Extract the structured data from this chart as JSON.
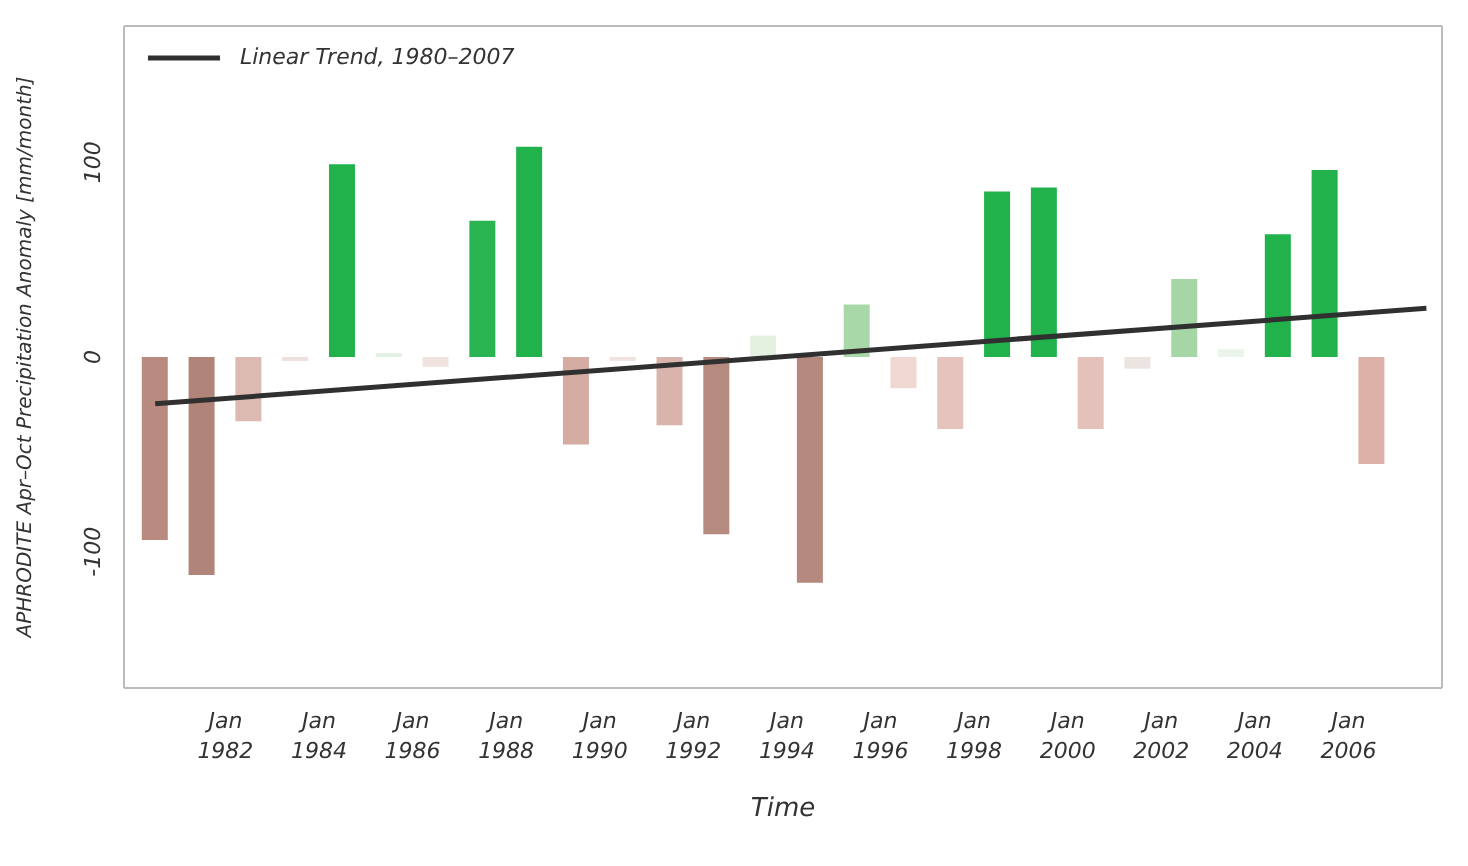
{
  "chart_data": {
    "type": "bar",
    "xlabel": "Time",
    "ylabel": "APHRODITE Apr–Oct Precipitation Anomaly [mm/month]",
    "x": [
      "1980-07",
      "1981-07",
      "1982-07",
      "1983-07",
      "1984-07",
      "1985-07",
      "1986-07",
      "1987-07",
      "1988-07",
      "1989-07",
      "1990-07",
      "1991-07",
      "1992-07",
      "1993-07",
      "1994-07",
      "1995-07",
      "1996-07",
      "1997-07",
      "1998-07",
      "1999-07",
      "2000-07",
      "2001-07",
      "2002-07",
      "2003-07",
      "2004-07",
      "2005-07",
      "2006-07"
    ],
    "series": [
      {
        "values": [
          -94,
          -112,
          -33,
          -2,
          99,
          2,
          -5,
          70,
          108,
          -45,
          -2,
          -35,
          -91,
          11,
          -116,
          27,
          -16,
          -37,
          85,
          87,
          -37,
          -6,
          40,
          4,
          63,
          96,
          -55
        ],
        "colors": [
          "#b98b80",
          "#b08478",
          "#dcbab2",
          "#eee0dc",
          "#22b24c",
          "#e2f2e2",
          "#f0e2de",
          "#2ab552",
          "#22b24c",
          "#d4aca2",
          "#f0e2de",
          "#d8b4ac",
          "#b58a7f",
          "#e4f0e0",
          "#b5897e",
          "#a8d8a8",
          "#f0d8d2",
          "#e4c4bc",
          "#22b24c",
          "#22b24c",
          "#e2c2ba",
          "#ece4e0",
          "#a6d6a6",
          "#eaf4ea",
          "#22b24c",
          "#22b24c",
          "#dcb2a8"
        ]
      },
      {
        "type": "line",
        "name": "Linear Trend, 1980–2007",
        "color": "#303030",
        "x": [
          "1980-07",
          "2007-09"
        ],
        "values": [
          -24,
          25
        ]
      }
    ],
    "xlim": [
      "1979-11",
      "2008-01"
    ],
    "xticks": [
      {
        "value": "1982-01",
        "label": "Jan 1982"
      },
      {
        "value": "1984-01",
        "label": "Jan 1984"
      },
      {
        "value": "1986-01",
        "label": "Jan 1986"
      },
      {
        "value": "1988-01",
        "label": "Jan 1988"
      },
      {
        "value": "1990-01",
        "label": "Jan 1990"
      },
      {
        "value": "1992-01",
        "label": "Jan 1992"
      },
      {
        "value": "1994-01",
        "label": "Jan 1994"
      },
      {
        "value": "1996-01",
        "label": "Jan 1996"
      },
      {
        "value": "1998-01",
        "label": "Jan 1998"
      },
      {
        "value": "2000-01",
        "label": "Jan 2000"
      },
      {
        "value": "2002-01",
        "label": "Jan 2002"
      },
      {
        "value": "2004-01",
        "label": "Jan 2004"
      },
      {
        "value": "2006-01",
        "label": "Jan 2006"
      }
    ],
    "ylim": [
      -170,
      170
    ],
    "yticks": [
      -100,
      0,
      100
    ],
    "legend": "top left"
  }
}
